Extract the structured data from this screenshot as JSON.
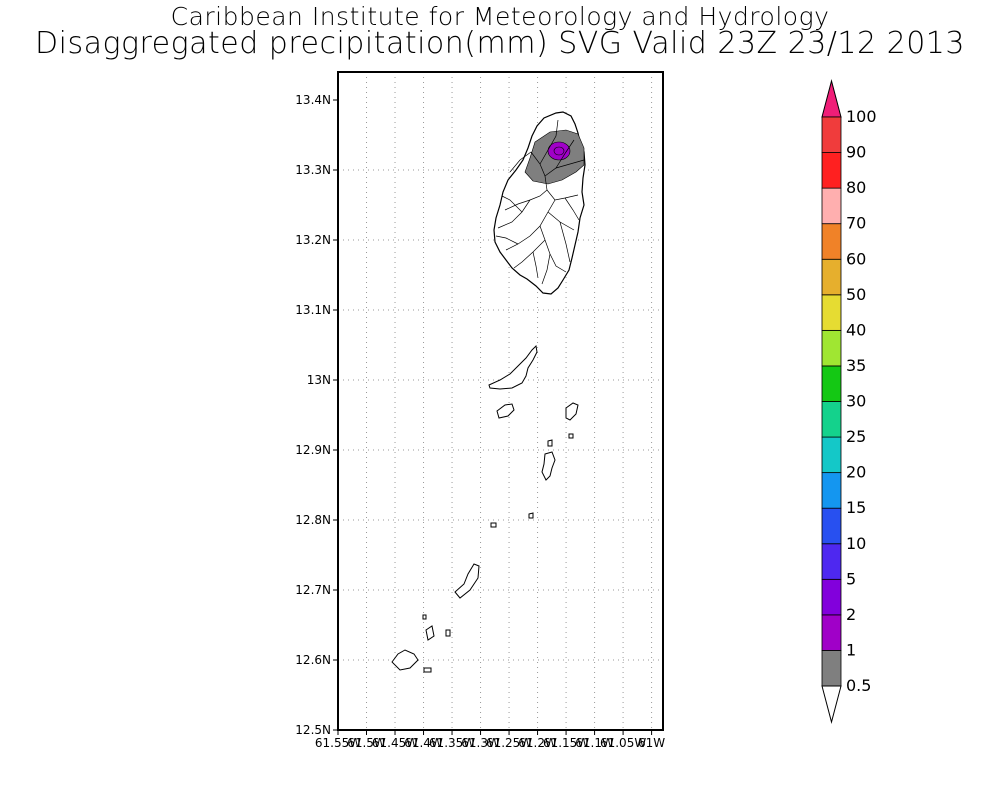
{
  "title": {
    "line1": "Caribbean Institute for Meteorology and Hydrology",
    "line2": "Disaggregated precipitation(mm) SVG Valid 23Z 23/12 2013"
  },
  "map": {
    "lat_ticks": [
      "13.4N",
      "13.3N",
      "13.2N",
      "13.1N",
      "13N",
      "12.9N",
      "12.8N",
      "12.7N",
      "12.6N",
      "12.5N"
    ],
    "lat_values": [
      13.4,
      13.3,
      13.2,
      13.1,
      13.0,
      12.9,
      12.8,
      12.7,
      12.6,
      12.5
    ],
    "lon_ticks": [
      "61.55W",
      "61.5W",
      "61.45W",
      "61.4W",
      "61.35W",
      "61.3W",
      "61.25W",
      "61.2W",
      "61.15W",
      "61.1W",
      "61.05W",
      "61W"
    ],
    "lon_values": [
      -61.55,
      -61.5,
      -61.45,
      -61.4,
      -61.35,
      -61.3,
      -61.25,
      -61.2,
      -61.15,
      -61.1,
      -61.05,
      -61.0
    ],
    "lat_range": [
      12.5,
      13.44
    ],
    "lon_range": [
      -61.55,
      -60.98
    ],
    "grid": true
  },
  "colorbar": {
    "labels": [
      "0.5",
      "1",
      "2",
      "5",
      "10",
      "15",
      "20",
      "25",
      "30",
      "35",
      "40",
      "50",
      "60",
      "70",
      "80",
      "90",
      "100"
    ],
    "colors": [
      "#7f7f7f",
      "#a000c8",
      "#8200dc",
      "#4e28f0",
      "#2850f0",
      "#1496f0",
      "#14c8c8",
      "#14d28c",
      "#14c814",
      "#a0e632",
      "#e6dc32",
      "#e6af2d",
      "#f08228",
      "#ffafaf",
      "#ff2020",
      "#f03c3c"
    ],
    "over_color": "#f01e78",
    "under_color": "#ffffff"
  }
}
